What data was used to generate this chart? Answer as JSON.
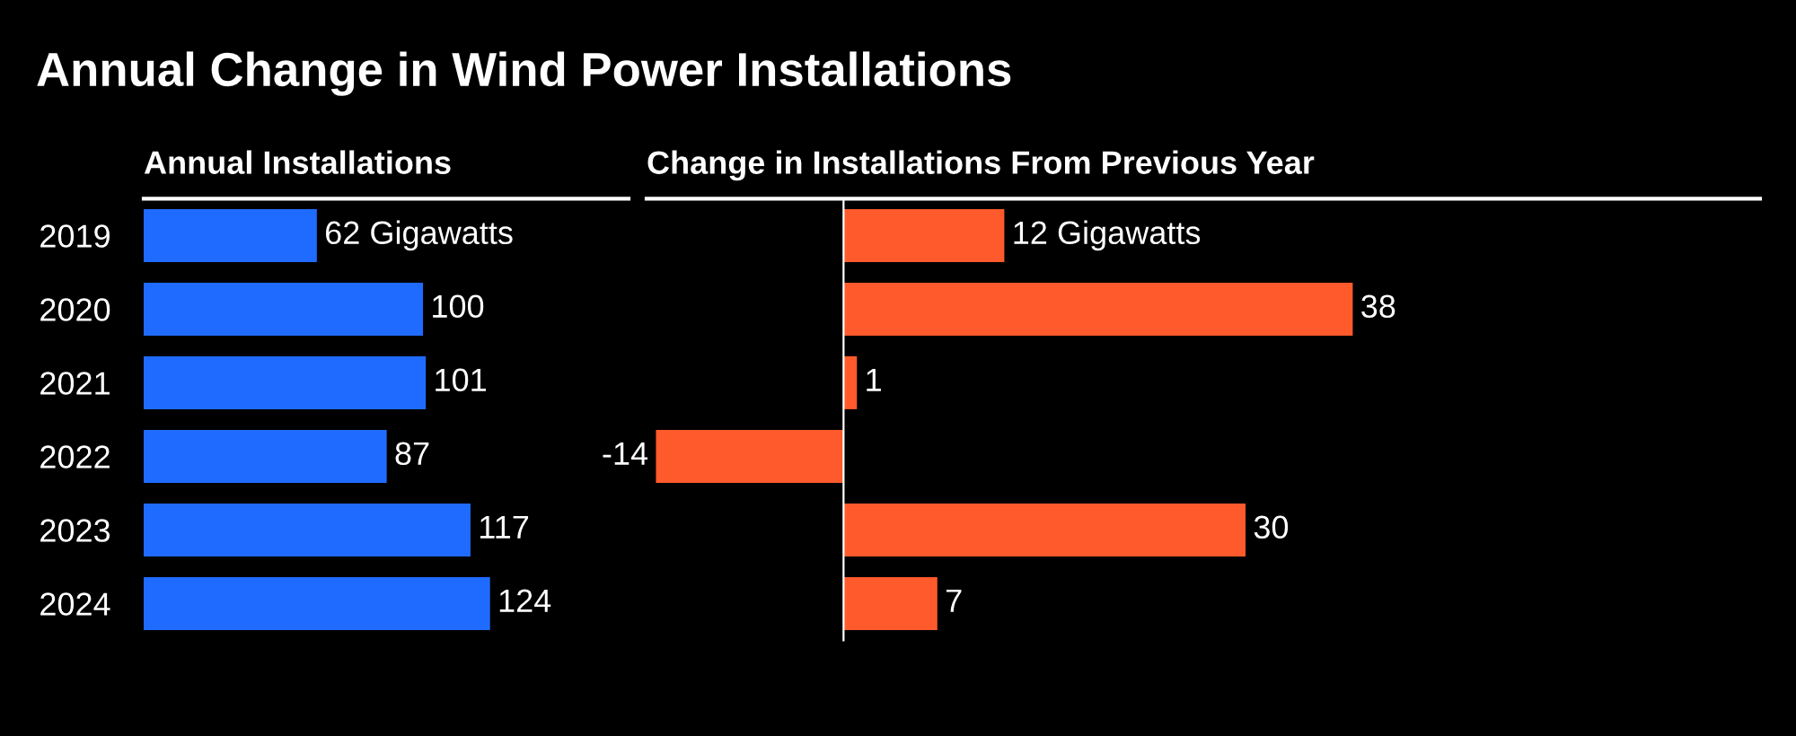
{
  "chart_data": [
    {
      "type": "bar",
      "orientation": "horizontal",
      "title": "Annual Change in Wind Power Installations",
      "subtitle": "Annual Installations",
      "categories": [
        "2019",
        "2020",
        "2021",
        "2022",
        "2023",
        "2024"
      ],
      "series": [
        {
          "color": "#1f6bff",
          "values": [
            62,
            100,
            101,
            87,
            117,
            124
          ],
          "value_labels": [
            "62 Gigawatts",
            "100",
            "101",
            "87",
            "117",
            "124"
          ]
        }
      ],
      "grid": false,
      "legend": false
    },
    {
      "type": "bar",
      "orientation": "horizontal",
      "title": "Change in Installations From Previous Year",
      "categories": [
        "2019",
        "2020",
        "2021",
        "2022",
        "2023",
        "2024"
      ],
      "series": [
        {
          "color": "#ff5a2b",
          "values": [
            12,
            38,
            1,
            -14,
            30,
            7
          ],
          "value_labels": [
            "12 Gigawatts",
            "38",
            "1",
            "-14",
            "30",
            "7"
          ]
        }
      ],
      "grid": false,
      "legend": false,
      "tick_labels": false
    }
  ]
}
